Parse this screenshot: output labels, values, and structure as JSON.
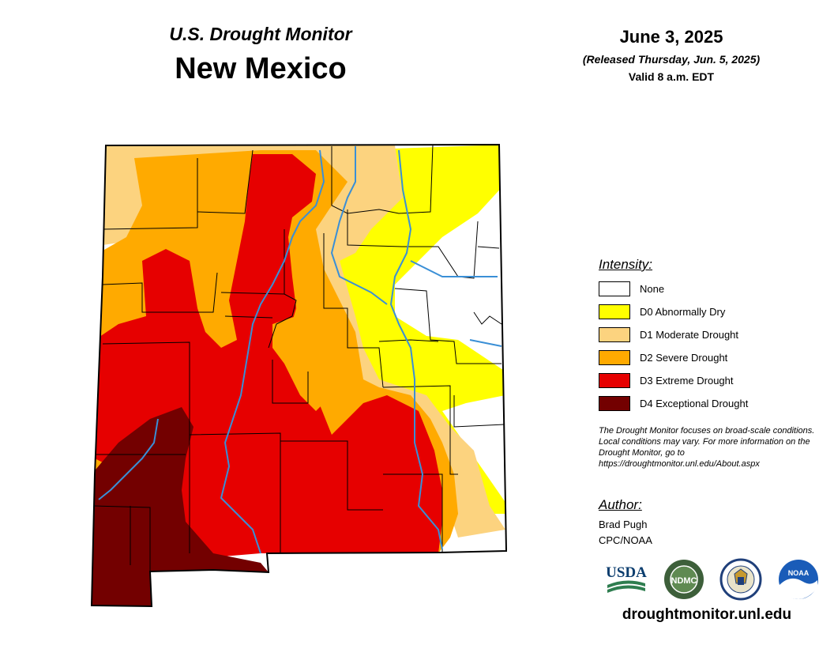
{
  "header": {
    "subtitle": "U.S. Drought Monitor",
    "title": "New Mexico",
    "date": "June 3, 2025",
    "released": "(Released Thursday, Jun. 5, 2025)",
    "valid": "Valid 8 a.m. EDT"
  },
  "legend": {
    "heading": "Intensity:",
    "items": [
      {
        "label": "None",
        "color": "#ffffff"
      },
      {
        "label": "D0 Abnormally Dry",
        "color": "#ffff00"
      },
      {
        "label": "D1 Moderate Drought",
        "color": "#fcd37f"
      },
      {
        "label": "D2 Severe Drought",
        "color": "#ffaa00"
      },
      {
        "label": "D3 Extreme Drought",
        "color": "#e60000"
      },
      {
        "label": "D4 Exceptional Drought",
        "color": "#730000"
      }
    ]
  },
  "disclaimer": "The Drought Monitor focuses on broad-scale conditions. Local conditions may vary. For more information on the Drought Monitor, go to https://droughtmonitor.unl.edu/About.aspx",
  "author": {
    "heading": "Author:",
    "name": "Brad Pugh",
    "org": "CPC/NOAA"
  },
  "logos": {
    "usda": "USDA",
    "ndmc": "NDMC",
    "noaa": "NOAA"
  },
  "site_url": "droughtmonitor.unl.edu",
  "colors": {
    "river": "#3a8fd6",
    "county_border": "#000000"
  }
}
